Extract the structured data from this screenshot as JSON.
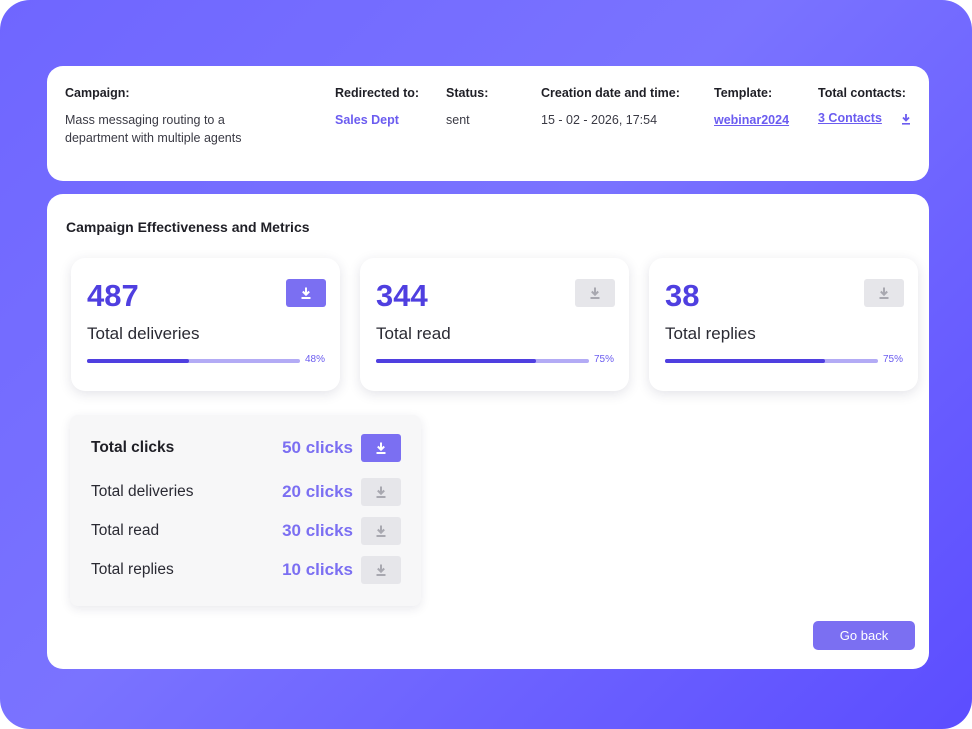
{
  "campaign_info": {
    "campaign": {
      "label": "Campaign:",
      "value_line1": "Mass messaging routing to a",
      "value_line2": "department with multiple agents"
    },
    "redirected": {
      "label": "Redirected to:",
      "value": "Sales Dept"
    },
    "status": {
      "label": "Status:",
      "value": "sent"
    },
    "created": {
      "label": "Creation date and time:",
      "value": "15 - 02 - 2026, 17:54"
    },
    "template": {
      "label": "Template:",
      "value": "webinar2024"
    },
    "contacts": {
      "label": "Total contacts:",
      "value": "3 Contacts",
      "icon": "download-icon"
    }
  },
  "metrics": {
    "title": "Campaign Effectiveness and Metrics",
    "cards": [
      {
        "value": "487",
        "label": "Total deliveries",
        "percent_label": "48%",
        "progress": 0.48,
        "download_active": true
      },
      {
        "value": "344",
        "label": "Total read",
        "percent_label": "75%",
        "progress": 0.75,
        "download_active": false
      },
      {
        "value": "38",
        "label": "Total replies",
        "percent_label": "75%",
        "progress": 0.75,
        "download_active": false
      }
    ]
  },
  "clicks": {
    "rows": [
      {
        "label": "Total clicks",
        "value": "50 clicks",
        "download_active": true
      },
      {
        "label": "Total deliveries",
        "value": "20 clicks",
        "download_active": false
      },
      {
        "label": "Total read",
        "value": "30 clicks",
        "download_active": false
      },
      {
        "label": "Total replies",
        "value": "10 clicks",
        "download_active": false
      }
    ]
  },
  "actions": {
    "go_back": "Go back"
  },
  "colors": {
    "accent": "#4f3fe0",
    "button": "#7b6ff2",
    "inactive": "#e6e6ea"
  }
}
